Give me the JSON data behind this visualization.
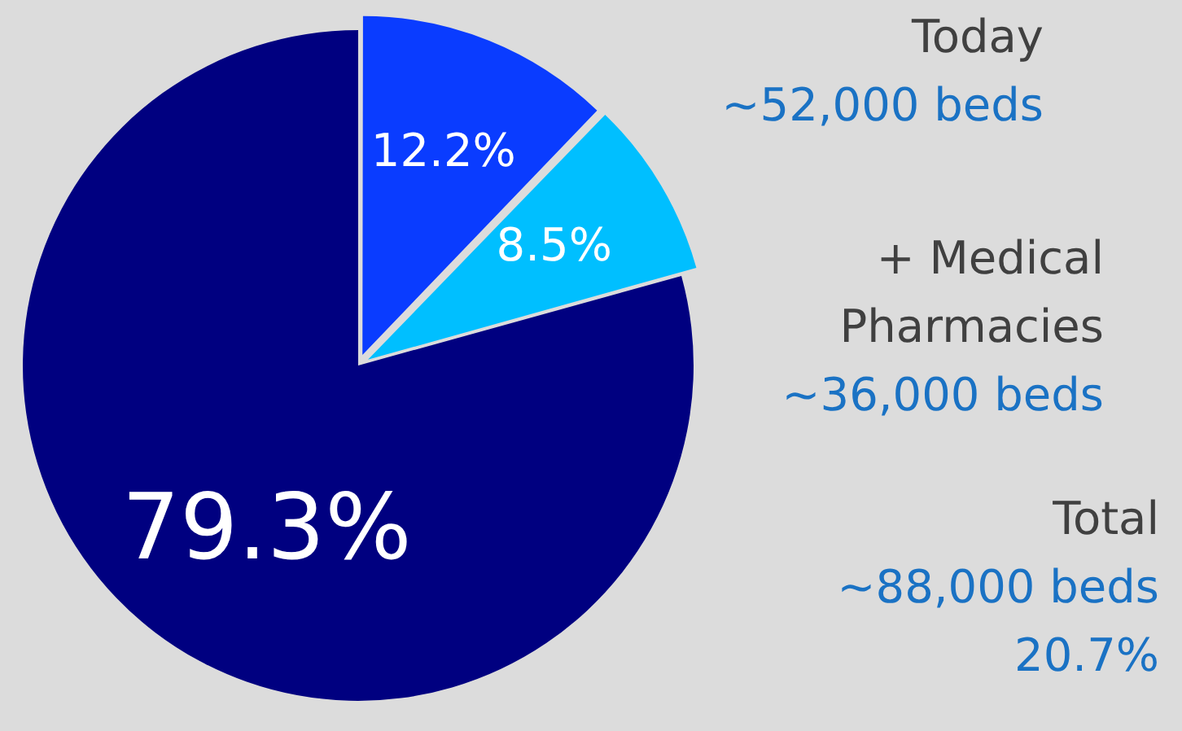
{
  "chart_data": {
    "type": "pie",
    "categories": [
      null,
      null,
      null
    ],
    "values": [
      12.2,
      8.5,
      79.3
    ],
    "colors": [
      "#0a3cff",
      "#00bfff",
      "#000080"
    ],
    "value_labels": [
      "12.2%",
      "8.5%",
      "79.3%"
    ],
    "annotations": [
      "Today",
      "~52,000 beds",
      "+ Medical Pharmacies",
      "~36,000 beds",
      "Total",
      "~88,000 beds",
      "20.7%"
    ]
  }
}
